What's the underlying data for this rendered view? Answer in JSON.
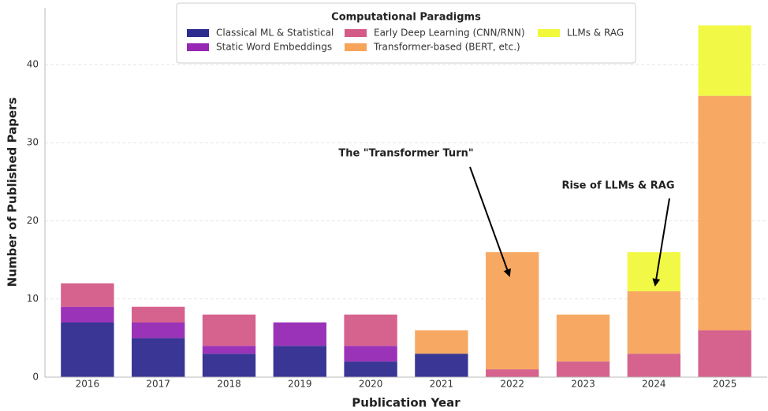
{
  "chart_data": {
    "type": "stacked_bar",
    "x_label": "Publication Year",
    "y_label": "Number of Published Papers",
    "legend_title": "Computational Paradigms",
    "categories": [
      "2016",
      "2017",
      "2018",
      "2019",
      "2020",
      "2021",
      "2022",
      "2023",
      "2024",
      "2025"
    ],
    "series": [
      {
        "name": "Classical ML & Statistical",
        "color": "#2e2b8f",
        "values": [
          7,
          5,
          3,
          4,
          2,
          3,
          0,
          0,
          0,
          0
        ]
      },
      {
        "name": "Static Word Embeddings",
        "color": "#9628b4",
        "values": [
          2,
          2,
          1,
          3,
          2,
          0,
          0,
          0,
          0,
          0
        ]
      },
      {
        "name": "Early Deep Learning (CNN/RNN)",
        "color": "#d45a88",
        "values": [
          3,
          2,
          4,
          0,
          4,
          0,
          1,
          2,
          3,
          6
        ]
      },
      {
        "name": "Transformer-based (BERT, etc.)",
        "color": "#f7a45b",
        "values": [
          0,
          0,
          0,
          0,
          0,
          3,
          15,
          6,
          8,
          30
        ]
      },
      {
        "name": "LLMs & RAG",
        "color": "#f0f93c",
        "values": [
          0,
          0,
          0,
          0,
          0,
          0,
          0,
          0,
          5,
          9
        ]
      }
    ],
    "ylim": [
      0,
      47.25
    ],
    "yticks": [
      0,
      10,
      20,
      30,
      40
    ],
    "grid": true,
    "annotations": [
      "The \"Transformer Turn\"",
      "Rise of LLMs & RAG"
    ]
  }
}
